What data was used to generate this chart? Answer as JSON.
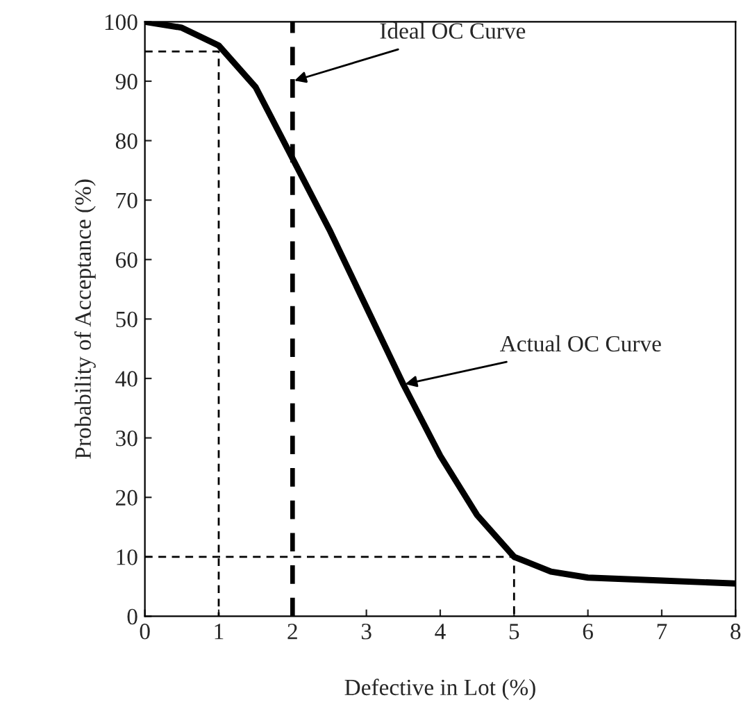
{
  "chart_data": {
    "type": "line",
    "xlabel": "Defective in Lot (%)",
    "ylabel": "Probability of Acceptance (%)",
    "series": [
      {
        "color": "#000000",
        "line_style": "solid",
        "x": [
          0,
          0.5,
          1,
          1.5,
          2,
          2.5,
          3,
          3.5,
          4,
          4.5,
          5,
          5.5,
          6,
          7,
          8
        ],
        "values": [
          100,
          99,
          96,
          89,
          77,
          65,
          52,
          39,
          27,
          17,
          10,
          7.5,
          6.5,
          6,
          5.5
        ]
      },
      {
        "color": "#000000",
        "line_style": "dashed",
        "x": [
          0,
          1,
          1
        ],
        "values": [
          95,
          95,
          0
        ]
      },
      {
        "color": "#000000",
        "line_style": "dashed",
        "x": [
          0,
          5,
          5
        ],
        "values": [
          10,
          10,
          0
        ]
      }
    ],
    "ref_lines": [
      {
        "axis": "x",
        "value": 2,
        "color": "#000000",
        "line_style": "dashed"
      }
    ],
    "annotations": [
      {
        "text": "Ideal OC Curve",
        "x": 2,
        "y": 90
      },
      {
        "text": "Actual OC Curve",
        "x": 3.5,
        "y": 39
      }
    ],
    "xlim": [
      0,
      8
    ],
    "ylim": [
      0,
      100
    ],
    "xticks": [
      0,
      1,
      2,
      3,
      4,
      5,
      6,
      7,
      8
    ],
    "yticks": [
      0,
      10,
      20,
      30,
      40,
      50,
      60,
      70,
      80,
      90,
      100
    ],
    "grid": false,
    "legend": false,
    "marker": "none"
  }
}
